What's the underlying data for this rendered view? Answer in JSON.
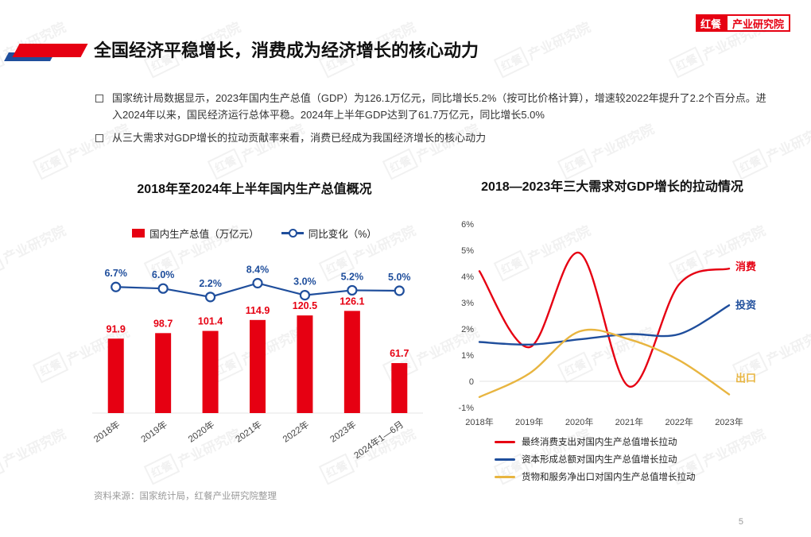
{
  "page": {
    "title": "全国经济平稳增长，消费成为经济增长的核心动力",
    "page_number": "5",
    "source_note": "资料来源：国家统计局，红餐产业研究院整理"
  },
  "logo": {
    "brand": "红餐",
    "suffix": "产业研究院"
  },
  "watermark": {
    "box": "红餐",
    "text": "产业研究院"
  },
  "bullets": [
    "国家统计局数据显示，2023年国内生产总值（GDP）为126.1万亿元，同比增长5.2%（按可比价格计算），增速较2022年提升了2.2个百分点。进入2024年以来，国民经济运行总体平稳。2024年上半年GDP达到了61.7万亿元，同比增长5.0%",
    "从三大需求对GDP增长的拉动贡献率来看，消费已经成为我国经济增长的核心动力"
  ],
  "colors": {
    "red": "#E60012",
    "blue": "#1F4E9C",
    "yellow": "#E8B540",
    "text": "#333333"
  },
  "chart_data": [
    {
      "type": "bar",
      "title": "2018年至2024年上半年国内生产总值概况",
      "categories": [
        "2018年",
        "2019年",
        "2020年",
        "2021年",
        "2022年",
        "2023年",
        "2024年1—6月"
      ],
      "series": [
        {
          "name": "国内生产总值（万亿元）",
          "type": "bar",
          "color": "#E60012",
          "values": [
            91.9,
            98.7,
            101.4,
            114.9,
            120.5,
            126.1,
            61.7
          ]
        },
        {
          "name": "同比变化（%）",
          "type": "line",
          "color": "#1F4E9C",
          "values": [
            6.7,
            6.0,
            2.2,
            8.4,
            3.0,
            5.2,
            5.0
          ],
          "labels": [
            "6.7%",
            "6.0%",
            "2.2%",
            "8.4%",
            "3.0%",
            "5.2%",
            "5.0%"
          ]
        }
      ],
      "legend_position": "top",
      "grid": false
    },
    {
      "type": "line",
      "title": "2018—2023年三大需求对GDP增长的拉动情况",
      "categories": [
        "2018年",
        "2019年",
        "2020年",
        "2021年",
        "2022年",
        "2023年"
      ],
      "ylim": [
        -1,
        6
      ],
      "yticks": [
        6,
        5,
        4,
        3,
        2,
        1,
        0,
        -1
      ],
      "ylabels": [
        "6%",
        "5%",
        "4%",
        "3%",
        "2%",
        "1%",
        "0",
        "-1%"
      ],
      "series": [
        {
          "name": "最终消费支出对国内生产总值增长拉动",
          "short": "消费",
          "color": "#E60012",
          "values": [
            4.2,
            1.3,
            4.9,
            -0.2,
            3.7,
            4.3
          ]
        },
        {
          "name": "资本形成总额对国内生产总值增长拉动",
          "short": "投资",
          "color": "#1F4E9C",
          "values": [
            1.5,
            1.4,
            1.6,
            1.8,
            1.8,
            2.9
          ]
        },
        {
          "name": "货物和服务净出口对国内生产总值增长拉动",
          "short": "出口",
          "color": "#E8B540",
          "values": [
            -0.6,
            0.3,
            1.9,
            1.6,
            0.8,
            -0.5
          ]
        }
      ],
      "legend_position": "bottom",
      "grid": false
    }
  ]
}
